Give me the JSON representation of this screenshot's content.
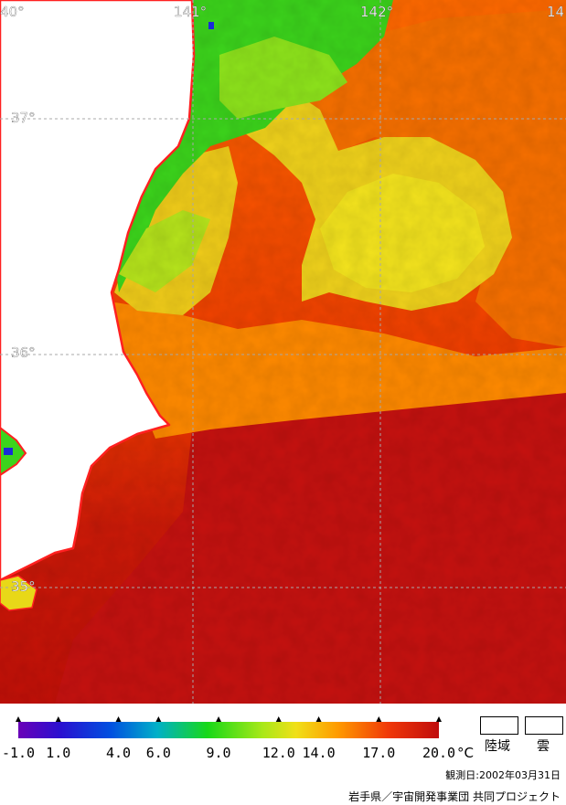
{
  "map": {
    "longitude_labels": [
      "40°",
      "141°",
      "142°",
      "14"
    ],
    "latitude_labels": [
      "37°",
      "36°",
      "35°"
    ]
  },
  "colors": {
    "land": "#ffffff",
    "coastline": "#ff2020",
    "grid": "#a0a0a0",
    "warm": "#c81010",
    "mid": "#ff7a00",
    "cool": "#f2e020",
    "cold": "#3cd820"
  },
  "legend": {
    "scale_labels": [
      "-1.0",
      "1.0",
      "4.0",
      "6.0",
      "9.0",
      "12.0",
      "14.0",
      "17.0",
      "20.0"
    ],
    "scale_values": [
      -1.0,
      1.0,
      4.0,
      6.0,
      9.0,
      12.0,
      14.0,
      17.0,
      20.0
    ],
    "unit": "°C",
    "land_label": "陸域",
    "cloud_label": "雲",
    "observation_date": "観測日:2002年03月31日",
    "credit": "岩手県／宇宙開発事業団 共同プロジェクト"
  }
}
